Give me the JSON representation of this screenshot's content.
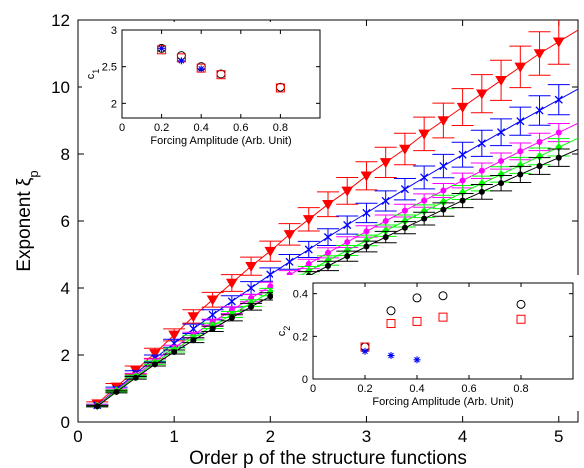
{
  "chart_data": [
    {
      "type": "line",
      "title": "",
      "xlabel": "Order p of the structure functions",
      "ylabel": "Exponent ξ",
      "ylabel_subscript": "p",
      "xlim": [
        0,
        5.2
      ],
      "ylim": [
        0,
        12
      ],
      "xticks": [
        "0",
        "1",
        "2",
        "3",
        "4",
        "5"
      ],
      "yticks": [
        "0",
        "2",
        "4",
        "6",
        "8",
        "10",
        "12"
      ],
      "grid": false,
      "x": [
        0.2,
        0.4,
        0.6,
        0.8,
        1.0,
        1.2,
        1.4,
        1.6,
        1.8,
        2.0,
        2.2,
        2.4,
        2.6,
        2.8,
        3.0,
        3.2,
        3.4,
        3.6,
        3.8,
        4.0,
        4.2,
        4.4,
        4.6,
        4.8,
        5.0
      ],
      "series": [
        {
          "marker": "triangle-down",
          "color": "#ff0000",
          "values": [
            0.55,
            1.05,
            1.55,
            2.05,
            2.6,
            3.15,
            3.65,
            4.15,
            4.65,
            5.1,
            5.6,
            6.05,
            6.5,
            6.9,
            7.35,
            7.75,
            8.15,
            8.6,
            9.0,
            9.4,
            9.8,
            10.2,
            10.6,
            11.0,
            11.35
          ],
          "errors": [
            0.05,
            0.1,
            0.12,
            0.15,
            0.18,
            0.2,
            0.22,
            0.25,
            0.27,
            0.3,
            0.32,
            0.35,
            0.37,
            0.4,
            0.42,
            0.45,
            0.47,
            0.5,
            0.52,
            0.55,
            0.57,
            0.6,
            0.62,
            0.65,
            0.67
          ]
        },
        {
          "marker": "x",
          "color": "#0000ff",
          "values": [
            0.5,
            0.98,
            1.45,
            1.9,
            2.35,
            2.78,
            3.2,
            3.6,
            4.0,
            4.4,
            4.78,
            5.15,
            5.52,
            5.88,
            6.24,
            6.6,
            6.95,
            7.3,
            7.64,
            7.98,
            8.32,
            8.65,
            8.98,
            9.3,
            9.62
          ],
          "errors": [
            0.03,
            0.06,
            0.08,
            0.1,
            0.12,
            0.14,
            0.15,
            0.17,
            0.19,
            0.2,
            0.22,
            0.24,
            0.25,
            0.27,
            0.29,
            0.3,
            0.32,
            0.34,
            0.35,
            0.37,
            0.39,
            0.4,
            0.42,
            0.44,
            0.45
          ]
        },
        {
          "marker": "dot",
          "color": "#ff00ff",
          "values": [
            0.5,
            0.95,
            1.4,
            1.82,
            2.22,
            2.6,
            2.98,
            3.34,
            3.7,
            4.05,
            4.39,
            4.72,
            5.05,
            5.37,
            5.69,
            6.0,
            6.31,
            6.61,
            6.91,
            7.21,
            7.5,
            7.79,
            8.08,
            8.36,
            8.64
          ],
          "errors": [
            0.02,
            0.04,
            0.05,
            0.06,
            0.07,
            0.08,
            0.09,
            0.1,
            0.11,
            0.12,
            0.13,
            0.14,
            0.15,
            0.16,
            0.17,
            0.18,
            0.19,
            0.2,
            0.21,
            0.22,
            0.23,
            0.24,
            0.25,
            0.26,
            0.27
          ]
        },
        {
          "marker": "diamond",
          "color": "#00ff00",
          "values": [
            0.48,
            0.93,
            1.36,
            1.77,
            2.15,
            2.52,
            2.87,
            3.21,
            3.55,
            3.88,
            4.2,
            4.51,
            4.82,
            5.12,
            5.42,
            5.71,
            6.0,
            6.29,
            6.57,
            6.85,
            7.12,
            7.39,
            7.66,
            7.93,
            8.2
          ],
          "errors": [
            0.02,
            0.03,
            0.04,
            0.05,
            0.06,
            0.07,
            0.08,
            0.09,
            0.1,
            0.11,
            0.12,
            0.13,
            0.14,
            0.15,
            0.16,
            0.17,
            0.18,
            0.19,
            0.2,
            0.21,
            0.22,
            0.23,
            0.24,
            0.25,
            0.26
          ]
        },
        {
          "marker": "dot",
          "color": "#000000",
          "values": [
            0.47,
            0.9,
            1.32,
            1.72,
            2.09,
            2.44,
            2.78,
            3.11,
            3.44,
            3.75,
            4.06,
            4.36,
            4.66,
            4.95,
            5.24,
            5.52,
            5.8,
            6.07,
            6.34,
            6.61,
            6.87,
            7.13,
            7.39,
            7.64,
            7.89
          ],
          "errors": [
            0.02,
            0.03,
            0.04,
            0.05,
            0.06,
            0.07,
            0.08,
            0.09,
            0.1,
            0.11,
            0.12,
            0.13,
            0.14,
            0.15,
            0.16,
            0.17,
            0.18,
            0.19,
            0.2,
            0.21,
            0.22,
            0.23,
            0.24,
            0.25,
            0.26
          ]
        }
      ]
    },
    {
      "type": "scatter",
      "title": "",
      "xlabel": "Forcing Amplitude (Arb. Unit)",
      "ylabel": "c",
      "ylabel_subscript": "1",
      "xlim": [
        0,
        1
      ],
      "ylim": [
        1.8,
        3
      ],
      "xticks": [
        "0",
        "0.2",
        "0.4",
        "0.6",
        "0.8"
      ],
      "yticks": [
        "2",
        "2.5",
        "3"
      ],
      "series": [
        {
          "marker": "circle",
          "color": "#000000",
          "x": [
            0.2,
            0.3,
            0.4,
            0.5,
            0.8
          ],
          "values": [
            2.75,
            2.65,
            2.5,
            2.4,
            2.22
          ]
        },
        {
          "marker": "square",
          "color": "#ff0000",
          "x": [
            0.2,
            0.3,
            0.4,
            0.5,
            0.8
          ],
          "values": [
            2.73,
            2.62,
            2.48,
            2.39,
            2.21
          ]
        },
        {
          "marker": "star",
          "color": "#0000ff",
          "x": [
            0.2,
            0.3,
            0.4
          ],
          "values": [
            2.75,
            2.58,
            2.47
          ]
        }
      ]
    },
    {
      "type": "scatter",
      "title": "",
      "xlabel": "Forcing Amplitude (Arb. Unit)",
      "ylabel": "c",
      "ylabel_subscript": "2",
      "xlim": [
        0,
        1
      ],
      "ylim": [
        0,
        0.45
      ],
      "xticks": [
        "0",
        "0.2",
        "0.4",
        "0.6",
        "0.8"
      ],
      "yticks": [
        "0",
        "0.2",
        "0.4"
      ],
      "series": [
        {
          "marker": "circle",
          "color": "#000000",
          "x": [
            0.2,
            0.3,
            0.4,
            0.5,
            0.8
          ],
          "values": [
            0.15,
            0.32,
            0.38,
            0.39,
            0.35
          ]
        },
        {
          "marker": "square",
          "color": "#ff0000",
          "x": [
            0.2,
            0.3,
            0.4,
            0.5,
            0.8
          ],
          "values": [
            0.15,
            0.26,
            0.27,
            0.29,
            0.28
          ]
        },
        {
          "marker": "star",
          "color": "#0000ff",
          "x": [
            0.2,
            0.3,
            0.4
          ],
          "values": [
            0.13,
            0.11,
            0.09
          ]
        }
      ]
    }
  ]
}
